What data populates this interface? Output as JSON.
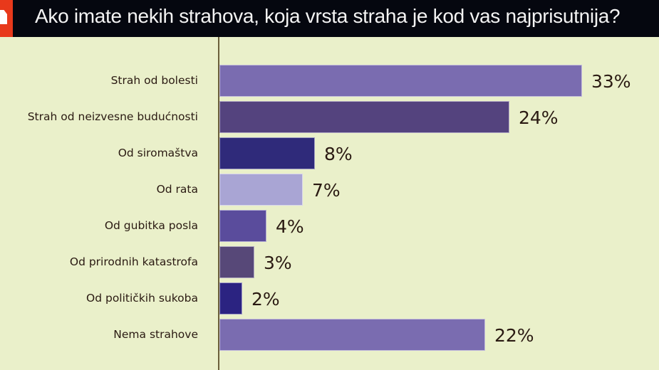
{
  "header": {
    "title": "Ako imate nekih strahova, koja vrsta straha je kod vas najprisutnija?",
    "logo_icon": "red-house-logo-icon",
    "background_color": "#05070f",
    "logo_color": "#e8391b"
  },
  "colors": {
    "background": "#eaf0ca",
    "axis": "#6b5f3a",
    "text": "#2a1a12"
  },
  "rows": [
    {
      "label": "Strah od bolesti",
      "value": "33%",
      "color": "#7a6cb0"
    },
    {
      "label": "Strah od neizvesne budućnosti",
      "value": "24%",
      "color": "#54437e"
    },
    {
      "label": "Od siromaštva",
      "value": "8%",
      "color": "#2f2a7a"
    },
    {
      "label": "Od rata",
      "value": "7%",
      "color": "#a9a5d4"
    },
    {
      "label": "Od gubitka posla",
      "value": "4%",
      "color": "#5a4c9c"
    },
    {
      "label": "Od prirodnih katastrofa",
      "value": "3%",
      "color": "#574878"
    },
    {
      "label": "Od političkih sukoba",
      "value": "2%",
      "color": "#2b2381"
    },
    {
      "label": "Nema strahove",
      "value": "22%",
      "color": "#7a6cb0"
    }
  ],
  "chart_data": {
    "type": "bar",
    "orientation": "horizontal",
    "title": "Ako imate nekih strahova, koja vrsta straha je kod vas najprisutnija?",
    "categories": [
      "Strah od bolesti",
      "Strah od neizvesne budućnosti",
      "Od siromaštva",
      "Od rata",
      "Od gubitka posla",
      "Od prirodnih katastrofa",
      "Od političkih sukoba",
      "Nema strahove"
    ],
    "values": [
      33,
      24,
      8,
      7,
      4,
      3,
      2,
      22
    ],
    "value_labels": [
      "33%",
      "24%",
      "8%",
      "7%",
      "4%",
      "3%",
      "2%",
      "22%"
    ],
    "unit": "%",
    "xlabel": "",
    "ylabel": "",
    "grid": false,
    "legend": null
  }
}
